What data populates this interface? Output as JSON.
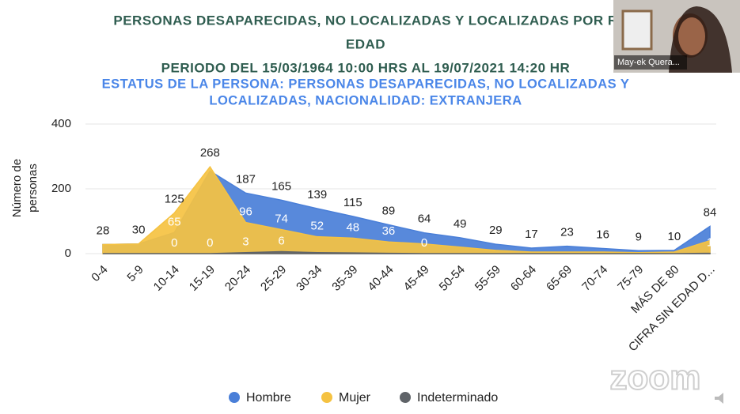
{
  "chart_data": {
    "type": "area",
    "title": [
      "PERSONAS DESAPARECIDAS, NO LOCALIZADAS Y LOCALIZADAS POR R",
      "EDAD",
      "PERIODO DEL 15/03/1964 10:00 HRS AL 19/07/2021 14:20 HR"
    ],
    "subtitle": [
      "ESTATUS DE LA PERSONA: PERSONAS DESAPARECIDAS, NO LOCALIZADAS Y",
      "LOCALIZADAS, NACIONALIDAD: EXTRANJERA"
    ],
    "y_label": [
      "Número de",
      "personas"
    ],
    "categories": [
      "0-4",
      "5-9",
      "10-14",
      "15-19",
      "20-24",
      "25-29",
      "30-34",
      "35-39",
      "40-44",
      "45-49",
      "50-54",
      "55-59",
      "60-64",
      "65-69",
      "70-74",
      "75-79",
      "MÁS DE 80",
      "CIFRA SIN EDAD D..."
    ],
    "series": [
      {
        "name": "Hombre",
        "color": "#4a7fd8",
        "values": [
          28,
          30,
          65,
          255,
          187,
          165,
          139,
          115,
          89,
          64,
          49,
          29,
          17,
          23,
          16,
          9,
          10,
          84
        ],
        "value_labels": [
          "28",
          "30",
          "65",
          null,
          "187",
          "165",
          "139",
          "115",
          "89",
          "64",
          "49",
          "29",
          "17",
          "23",
          "16",
          "9",
          "10",
          "84"
        ]
      },
      {
        "name": "Mujer",
        "color": "#f5c242",
        "values": [
          28,
          30,
          125,
          268,
          96,
          74,
          52,
          48,
          36,
          30,
          20,
          10,
          5,
          5,
          5,
          3,
          5,
          40
        ],
        "value_labels": [
          null,
          null,
          "125",
          "268",
          "96",
          "74",
          "52",
          "48",
          "36",
          null,
          null,
          null,
          null,
          null,
          null,
          null,
          null,
          null
        ]
      },
      {
        "name": "Indeterminado",
        "color": "#5f6368",
        "values": [
          0,
          0,
          0,
          0,
          3,
          6,
          3,
          2,
          1,
          0,
          0,
          0,
          0,
          0,
          0,
          0,
          0,
          1
        ],
        "value_labels": [
          null,
          null,
          "0",
          "0",
          "3",
          "6",
          null,
          null,
          null,
          "0",
          null,
          null,
          null,
          null,
          null,
          null,
          null,
          "1"
        ]
      }
    ],
    "ylim": [
      0,
      400
    ],
    "yticks": [
      0,
      200,
      400
    ],
    "grid": true,
    "legend": "bottom"
  },
  "overlay": {
    "participant_name": "May-ek Quera...",
    "logo": "zoom"
  }
}
